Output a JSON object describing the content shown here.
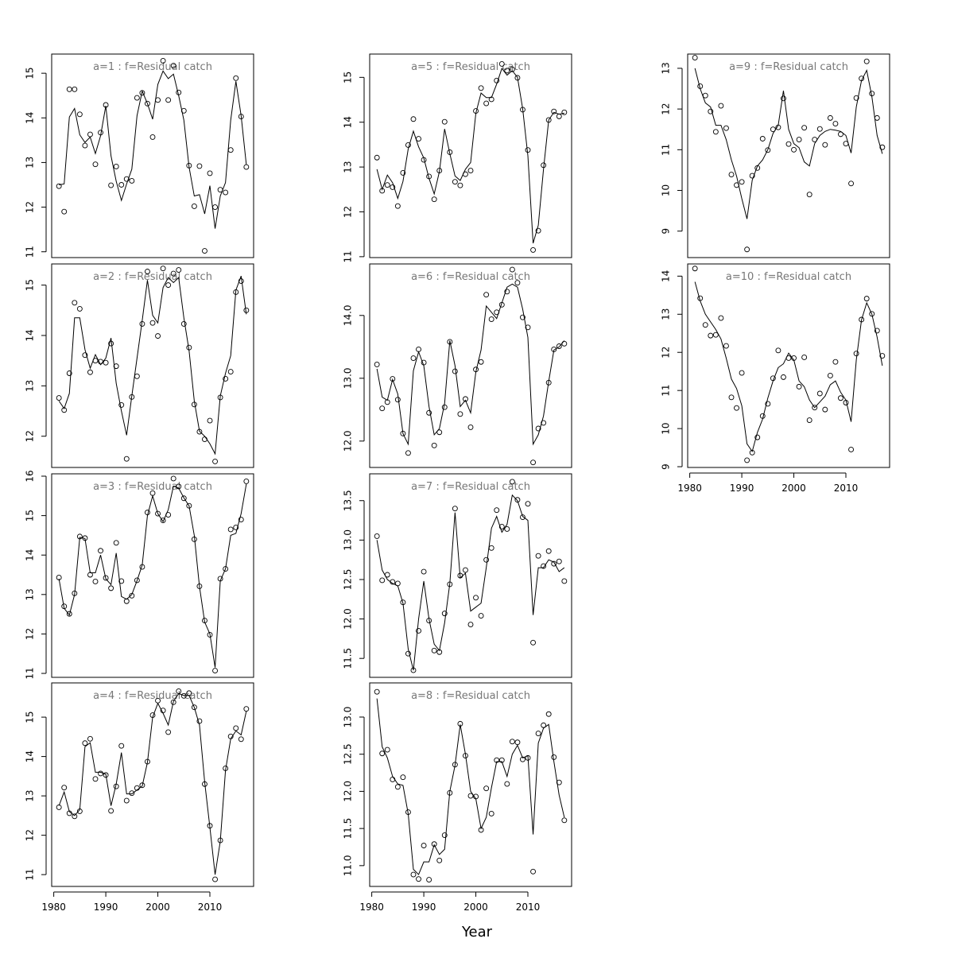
{
  "chart_data": {
    "type": "scatter",
    "xlabel": "Year",
    "ylabel": "",
    "x_ticks": [
      1980,
      1990,
      2000,
      2010
    ],
    "colors": {
      "points": "#000000",
      "line": "#000000",
      "title": "#777777",
      "frame": "#000000"
    },
    "panels": [
      {
        "title": "a=1  :  f=Residual catch",
        "xlim": [
          1979.6,
          2018.4
        ],
        "ylim": [
          10.87,
          15.43
        ],
        "yticks": [
          11,
          12,
          13,
          14,
          15
        ],
        "x_start": 1981,
        "points": [
          12.47,
          11.9,
          14.64,
          14.64,
          14.08,
          13.38,
          13.63,
          12.96,
          13.67,
          14.29,
          12.49,
          12.91,
          12.5,
          12.63,
          12.59,
          14.45,
          14.56,
          14.32,
          13.57,
          14.4,
          15.28,
          14.4,
          15.17,
          14.57,
          14.16,
          12.93,
          12.02,
          12.92,
          11.02,
          12.76,
          12.0,
          12.39,
          12.33,
          13.28,
          14.89,
          14.03,
          12.9
        ],
        "line": [
          12.5,
          12.52,
          14.02,
          14.21,
          13.62,
          13.45,
          13.57,
          13.2,
          13.6,
          14.27,
          13.15,
          12.58,
          12.15,
          12.52,
          12.85,
          14.05,
          14.6,
          14.32,
          13.97,
          14.75,
          15.05,
          14.88,
          14.98,
          14.5,
          13.95,
          12.9,
          12.25,
          12.28,
          11.85,
          12.48,
          11.52,
          12.25,
          12.55,
          13.95,
          14.82,
          14.05,
          12.95
        ]
      },
      {
        "title": "a=2  :  f=Residual catch",
        "xlim": [
          1979.6,
          2018.4
        ],
        "ylim": [
          11.38,
          15.42
        ],
        "yticks": [
          12,
          13,
          14,
          15
        ],
        "x_start": 1981,
        "points": [
          12.76,
          12.52,
          13.25,
          14.65,
          14.53,
          13.61,
          13.27,
          13.5,
          13.48,
          13.46,
          13.84,
          13.39,
          12.62,
          11.55,
          12.78,
          13.19,
          14.23,
          15.27,
          14.25,
          13.99,
          15.33,
          15.0,
          15.23,
          15.3,
          14.23,
          13.76,
          12.63,
          12.09,
          11.94,
          12.31,
          11.5,
          12.77,
          13.14,
          13.28,
          14.86,
          15.08,
          14.5
        ],
        "line": [
          12.7,
          12.55,
          12.85,
          14.35,
          14.35,
          13.72,
          13.35,
          13.62,
          13.42,
          13.55,
          13.95,
          13.05,
          12.5,
          12.02,
          12.8,
          13.55,
          14.3,
          15.1,
          14.4,
          14.25,
          14.95,
          15.15,
          15.05,
          15.15,
          14.35,
          13.7,
          12.7,
          12.1,
          12.0,
          11.85,
          11.65,
          12.8,
          13.25,
          13.6,
          14.9,
          15.18,
          14.42
        ]
      },
      {
        "title": "a=3  :  f=Residual catch",
        "xlim": [
          1979.6,
          2018.4
        ],
        "ylim": [
          10.9,
          16.06
        ],
        "yticks": [
          11,
          12,
          13,
          14,
          15,
          16
        ],
        "x_start": 1981,
        "points": [
          13.43,
          12.7,
          12.51,
          13.03,
          14.47,
          14.43,
          13.5,
          13.33,
          14.11,
          13.42,
          13.16,
          14.31,
          13.34,
          12.83,
          12.97,
          13.36,
          13.7,
          15.08,
          15.57,
          15.05,
          14.88,
          15.02,
          15.94,
          15.74,
          15.44,
          15.25,
          14.4,
          13.21,
          12.34,
          11.98,
          11.07,
          13.4,
          13.65,
          14.65,
          14.7,
          14.9,
          15.87
        ],
        "line": [
          13.4,
          12.65,
          12.48,
          13.0,
          14.45,
          14.42,
          13.55,
          13.55,
          14.0,
          13.4,
          13.25,
          14.05,
          12.95,
          12.88,
          13.0,
          13.35,
          13.75,
          15.0,
          15.5,
          15.05,
          14.85,
          15.15,
          15.75,
          15.7,
          15.45,
          15.25,
          14.5,
          13.2,
          12.3,
          12.0,
          11.15,
          13.35,
          13.65,
          14.5,
          14.55,
          15.05,
          15.8
        ]
      },
      {
        "title": "a=4  :  f=Residual catch",
        "xlim": [
          1979.6,
          2018.4
        ],
        "ylim": [
          10.7,
          15.87
        ],
        "yticks": [
          11,
          12,
          13,
          14,
          15
        ],
        "x_start": 1981,
        "points": [
          12.71,
          13.21,
          12.56,
          12.48,
          12.61,
          14.34,
          14.45,
          13.43,
          13.57,
          13.53,
          12.62,
          13.24,
          14.27,
          12.88,
          13.07,
          13.2,
          13.27,
          13.87,
          15.05,
          15.42,
          15.17,
          14.62,
          15.38,
          15.66,
          15.54,
          15.61,
          15.25,
          14.9,
          13.3,
          12.24,
          10.88,
          11.87,
          13.7,
          14.51,
          14.72,
          14.44,
          15.21
        ],
        "line": [
          12.75,
          13.1,
          12.6,
          12.5,
          12.65,
          14.25,
          14.35,
          13.6,
          13.6,
          13.55,
          12.75,
          13.3,
          14.1,
          13.05,
          13.05,
          13.15,
          13.25,
          13.85,
          15.0,
          15.35,
          15.1,
          14.8,
          15.4,
          15.6,
          15.55,
          15.55,
          15.25,
          14.8,
          13.35,
          12.2,
          11.0,
          11.85,
          13.65,
          14.45,
          14.65,
          14.55,
          15.15
        ]
      },
      {
        "title": "a=5  :  f=Residual catch",
        "xlim": [
          1979.6,
          2018.4
        ],
        "ylim": [
          10.98,
          15.52
        ],
        "yticks": [
          11,
          12,
          13,
          14,
          15
        ],
        "x_start": 1981,
        "points": [
          13.21,
          12.47,
          12.6,
          12.55,
          12.13,
          12.87,
          13.49,
          14.07,
          13.63,
          13.16,
          12.79,
          12.28,
          12.92,
          14.01,
          13.33,
          12.67,
          12.59,
          12.84,
          12.92,
          14.25,
          14.76,
          14.42,
          14.51,
          14.93,
          15.3,
          15.15,
          15.18,
          14.99,
          14.28,
          13.38,
          11.15,
          11.58,
          13.04,
          14.05,
          14.24,
          14.13,
          14.22
        ],
        "line": [
          12.95,
          12.5,
          12.82,
          12.65,
          12.3,
          12.68,
          13.4,
          13.8,
          13.45,
          13.2,
          12.75,
          12.4,
          12.9,
          13.85,
          13.3,
          12.8,
          12.7,
          12.95,
          13.1,
          14.2,
          14.65,
          14.55,
          14.55,
          14.85,
          15.2,
          15.05,
          15.15,
          15.0,
          14.3,
          13.25,
          11.3,
          11.7,
          12.95,
          14.05,
          14.22,
          14.18,
          14.2
        ]
      },
      {
        "title": "a=6  :  f=Residual catch",
        "xlim": [
          1979.6,
          2018.4
        ],
        "ylim": [
          11.58,
          14.82
        ],
        "yticks": [
          12.0,
          13.0,
          14.0
        ],
        "tick_format": "fixed1",
        "x_start": 1981,
        "points": [
          13.22,
          12.52,
          12.62,
          12.99,
          12.66,
          12.12,
          11.81,
          13.32,
          13.46,
          13.25,
          12.45,
          11.93,
          12.14,
          12.54,
          13.58,
          13.11,
          12.43,
          12.67,
          12.22,
          13.14,
          13.26,
          14.33,
          13.94,
          14.05,
          14.17,
          14.38,
          14.73,
          14.52,
          13.97,
          13.81,
          11.66,
          12.2,
          12.29,
          12.93,
          13.46,
          13.51,
          13.55
        ],
        "line": [
          13.15,
          12.7,
          12.65,
          12.98,
          12.75,
          12.12,
          11.95,
          13.12,
          13.42,
          13.2,
          12.55,
          12.1,
          12.2,
          12.6,
          13.6,
          13.2,
          12.55,
          12.65,
          12.45,
          13.1,
          13.45,
          14.15,
          14.05,
          13.95,
          14.2,
          14.45,
          14.5,
          14.45,
          14.1,
          13.65,
          11.95,
          12.1,
          12.4,
          12.95,
          13.45,
          13.5,
          13.6
        ]
      },
      {
        "title": "a=7  :  f=Residual catch",
        "xlim": [
          1979.6,
          2018.4
        ],
        "ylim": [
          11.26,
          13.84
        ],
        "yticks": [
          11.5,
          12.0,
          12.5,
          13.0,
          13.5
        ],
        "tick_format": "fixed1",
        "x_start": 1981,
        "points": [
          13.05,
          12.49,
          12.56,
          12.47,
          12.45,
          12.21,
          11.56,
          11.35,
          11.85,
          12.6,
          11.98,
          11.6,
          11.58,
          12.07,
          12.44,
          13.4,
          12.55,
          12.62,
          11.93,
          12.27,
          12.04,
          12.75,
          12.9,
          13.38,
          13.17,
          13.14,
          13.74,
          13.51,
          13.29,
          13.46,
          11.7,
          12.8,
          12.67,
          12.86,
          12.7,
          12.73,
          12.48
        ],
        "line": [
          13.0,
          12.62,
          12.5,
          12.45,
          12.42,
          12.2,
          11.62,
          11.35,
          12.0,
          12.48,
          12.0,
          11.68,
          11.6,
          11.95,
          12.45,
          13.35,
          12.52,
          12.58,
          12.1,
          12.15,
          12.2,
          12.65,
          13.15,
          13.3,
          13.1,
          13.2,
          13.57,
          13.5,
          13.3,
          13.25,
          12.05,
          12.65,
          12.65,
          12.75,
          12.72,
          12.6,
          12.65
        ]
      },
      {
        "title": "a=8  :  f=Residual catch",
        "xlim": [
          1979.6,
          2018.4
        ],
        "ylim": [
          10.72,
          13.46
        ],
        "yticks": [
          11.0,
          11.5,
          12.0,
          12.5,
          13.0
        ],
        "tick_format": "fixed1",
        "x_start": 1981,
        "points": [
          13.34,
          12.51,
          12.56,
          12.16,
          12.06,
          12.19,
          11.72,
          10.88,
          10.82,
          11.27,
          10.81,
          11.29,
          11.07,
          11.41,
          11.98,
          12.36,
          12.91,
          12.48,
          11.94,
          11.93,
          11.48,
          12.04,
          11.7,
          12.42,
          12.42,
          12.1,
          12.67,
          12.66,
          12.43,
          12.45,
          10.92,
          12.78,
          12.89,
          13.04,
          12.46,
          12.12,
          11.61
        ],
        "line": [
          13.25,
          12.6,
          12.45,
          12.2,
          12.1,
          12.08,
          11.7,
          10.95,
          10.88,
          11.05,
          11.05,
          11.28,
          11.15,
          11.22,
          12.0,
          12.35,
          12.9,
          12.5,
          12.0,
          11.9,
          11.5,
          11.65,
          12.05,
          12.4,
          12.4,
          12.2,
          12.5,
          12.62,
          12.45,
          12.48,
          11.42,
          12.65,
          12.85,
          12.9,
          12.4,
          11.95,
          11.65
        ]
      },
      {
        "title": "a=9  :  f=Residual catch",
        "xlim": [
          1979.6,
          2018.4
        ],
        "ylim": [
          8.35,
          13.35
        ],
        "yticks": [
          9,
          10,
          11,
          12,
          13
        ],
        "x_start": 1981,
        "points": [
          13.26,
          12.56,
          12.33,
          11.94,
          11.44,
          12.08,
          11.53,
          10.39,
          10.13,
          10.21,
          8.55,
          10.36,
          10.55,
          11.27,
          10.99,
          11.5,
          11.55,
          12.26,
          11.14,
          11.0,
          11.25,
          11.54,
          9.9,
          11.25,
          11.51,
          11.12,
          11.78,
          11.64,
          11.38,
          11.15,
          10.17,
          12.27,
          12.75,
          13.17,
          12.38,
          11.78,
          11.06
        ],
        "line": [
          13.0,
          12.5,
          12.15,
          12.05,
          11.6,
          11.6,
          11.25,
          10.75,
          10.35,
          9.8,
          9.3,
          10.25,
          10.6,
          10.75,
          11.0,
          11.4,
          11.6,
          12.45,
          11.5,
          11.15,
          11.05,
          10.7,
          10.6,
          11.15,
          11.35,
          11.45,
          11.5,
          11.48,
          11.45,
          11.35,
          10.92,
          12.05,
          12.7,
          12.95,
          12.3,
          11.35,
          10.9
        ]
      },
      {
        "title": "a=10  :  f=Residual catch",
        "xlim": [
          1979.6,
          2018.4
        ],
        "ylim": [
          8.98,
          14.32
        ],
        "yticks": [
          9,
          10,
          11,
          12,
          13,
          14
        ],
        "x_start": 1981,
        "points": [
          14.2,
          13.42,
          12.72,
          12.44,
          12.46,
          12.9,
          12.17,
          10.82,
          10.54,
          11.46,
          9.17,
          9.37,
          9.77,
          10.33,
          10.65,
          11.32,
          12.05,
          11.35,
          11.85,
          11.85,
          11.1,
          11.87,
          10.22,
          10.55,
          10.92,
          10.5,
          11.39,
          11.75,
          10.8,
          10.68,
          9.45,
          11.97,
          12.86,
          13.41,
          13.01,
          12.57,
          11.91
        ],
        "line": [
          13.85,
          13.35,
          13.0,
          12.8,
          12.6,
          12.35,
          11.85,
          11.3,
          11.05,
          10.6,
          9.6,
          9.4,
          9.9,
          10.25,
          10.8,
          11.25,
          11.6,
          11.7,
          11.98,
          11.8,
          11.25,
          11.1,
          10.75,
          10.55,
          10.7,
          10.85,
          11.15,
          11.25,
          10.95,
          10.75,
          10.18,
          11.8,
          12.85,
          13.3,
          13.0,
          12.4,
          11.65
        ]
      }
    ]
  }
}
